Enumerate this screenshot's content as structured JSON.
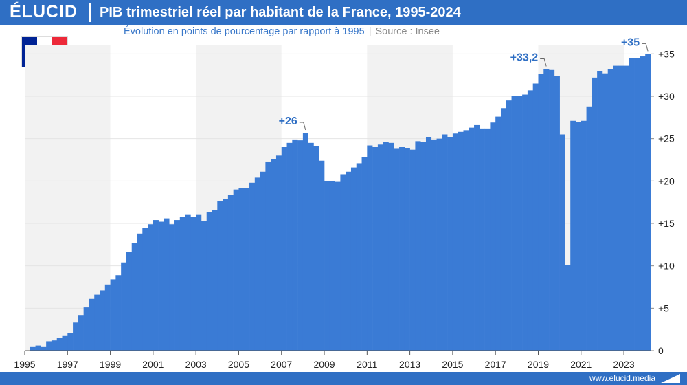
{
  "header": {
    "brand": "ÉLUCID",
    "title": "PIB trimestriel réel par habitant de la France, 1995-2024"
  },
  "subtitle": {
    "text": "Évolution en points de pourcentage par rapport à 1995",
    "source": "Source : Insee"
  },
  "footer": {
    "url": "www.elucid.media"
  },
  "colors": {
    "bar": "#3a7bd5",
    "accent": "#2f6fc4",
    "label": "#2f6fc4",
    "band": "#f2f2f2"
  },
  "chart_data": {
    "type": "bar",
    "x_start_year": 1995,
    "frequency": "quarterly",
    "ylim": [
      0,
      36
    ],
    "yticks": [
      0,
      5,
      10,
      15,
      20,
      25,
      30,
      35
    ],
    "ytick_labels": [
      "0",
      "+5",
      "+10",
      "+15",
      "+20",
      "+25",
      "+30",
      "+35"
    ],
    "xtick_labels": [
      "1995",
      "1997",
      "1999",
      "2001",
      "2003",
      "2005",
      "2007",
      "2009",
      "2011",
      "2013",
      "2015",
      "2017",
      "2019",
      "2021",
      "2023"
    ],
    "values": [
      0,
      0.5,
      0.6,
      0.5,
      1.1,
      1.2,
      1.5,
      1.8,
      2.1,
      3.3,
      4.2,
      5.1,
      6.1,
      6.6,
      7.1,
      7.8,
      8.4,
      8.9,
      10.4,
      11.6,
      12.7,
      13.8,
      14.5,
      14.9,
      15.4,
      15.2,
      15.6,
      14.9,
      15.4,
      15.8,
      16.0,
      15.8,
      16.0,
      15.3,
      16.3,
      16.6,
      17.6,
      17.9,
      18.4,
      19.0,
      19.2,
      19.2,
      19.8,
      20.4,
      21.1,
      22.3,
      22.6,
      23.0,
      24.0,
      24.5,
      24.9,
      24.8,
      25.7,
      24.5,
      24.1,
      22.4,
      20.0,
      20.0,
      19.9,
      20.8,
      21.1,
      21.6,
      22.1,
      22.8,
      24.2,
      24.0,
      24.3,
      24.6,
      24.5,
      23.8,
      24.0,
      23.9,
      23.7,
      24.7,
      24.6,
      25.2,
      24.9,
      25.0,
      25.5,
      25.2,
      25.6,
      25.8,
      26.0,
      26.3,
      26.6,
      26.2,
      26.2,
      26.9,
      27.6,
      28.6,
      29.5,
      30.0,
      30.0,
      30.2,
      30.7,
      31.5,
      32.6,
      33.2,
      33.1,
      32.4,
      25.5,
      10.1,
      27.1,
      27.0,
      27.1,
      28.8,
      32.2,
      33.0,
      32.7,
      33.2,
      33.6,
      33.6,
      33.6,
      34.5,
      34.5,
      34.7,
      35.0
    ],
    "annotations": [
      {
        "index": 52,
        "text": "+26"
      },
      {
        "index": 97,
        "text": "+33,2"
      },
      {
        "index": 116,
        "text": "+35"
      }
    ]
  }
}
